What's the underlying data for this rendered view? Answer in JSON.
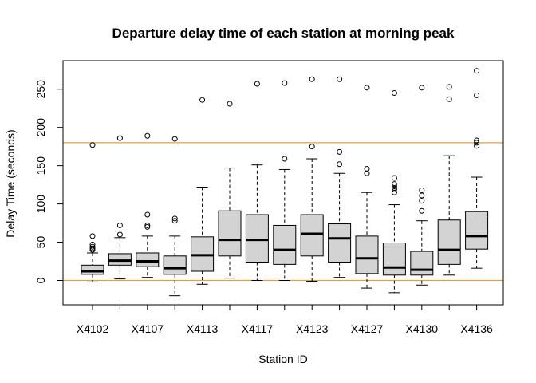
{
  "chart_data": {
    "type": "box",
    "title": "Departure delay time of each station at morning peak",
    "xlabel": "Station ID",
    "ylabel": "Delay Time (seconds)",
    "ylim": [
      -32,
      285
    ],
    "yticks": [
      0,
      50,
      100,
      150,
      200,
      250
    ],
    "x_tick_labels_shown": [
      "X4102",
      "X4107",
      "X4113",
      "X4117",
      "X4123",
      "X4127",
      "X4130",
      "X4136"
    ],
    "x_tick_label_every": 2,
    "reference_lines": [
      {
        "y": 180,
        "color": "#d8a44a"
      },
      {
        "y": 0,
        "color": "#d8a44a"
      }
    ],
    "box_fill": "#d3d3d3",
    "boxes": [
      {
        "label": "X4102",
        "whisker_low": -2,
        "q1": 8,
        "median": 12,
        "q3": 20,
        "whisker_high": 36,
        "outliers": [
          40,
          42,
          44,
          47,
          58,
          177
        ]
      },
      {
        "label": "",
        "whisker_low": 2,
        "q1": 20,
        "median": 26,
        "q3": 35,
        "whisker_high": 56,
        "outliers": [
          60,
          72,
          186
        ]
      },
      {
        "label": "X4107",
        "whisker_low": 4,
        "q1": 18,
        "median": 25,
        "q3": 36,
        "whisker_high": 58,
        "outliers": [
          70,
          72,
          86,
          189
        ]
      },
      {
        "label": "",
        "whisker_low": -20,
        "q1": 8,
        "median": 16,
        "q3": 32,
        "whisker_high": 58,
        "outliers": [
          78,
          81,
          185
        ]
      },
      {
        "label": "X4113",
        "whisker_low": -5,
        "q1": 12,
        "median": 33,
        "q3": 57,
        "whisker_high": 122,
        "outliers": [
          236
        ]
      },
      {
        "label": "",
        "whisker_low": 3,
        "q1": 32,
        "median": 53,
        "q3": 91,
        "whisker_high": 147,
        "outliers": [
          231
        ]
      },
      {
        "label": "X4117",
        "whisker_low": 0,
        "q1": 24,
        "median": 53,
        "q3": 86,
        "whisker_high": 151,
        "outliers": [
          257
        ]
      },
      {
        "label": "",
        "whisker_low": 0,
        "q1": 21,
        "median": 40,
        "q3": 72,
        "whisker_high": 145,
        "outliers": [
          159,
          258
        ]
      },
      {
        "label": "X4123",
        "whisker_low": -1,
        "q1": 32,
        "median": 61,
        "q3": 86,
        "whisker_high": 159,
        "outliers": [
          175,
          263
        ]
      },
      {
        "label": "",
        "whisker_low": 4,
        "q1": 24,
        "median": 55,
        "q3": 74,
        "whisker_high": 140,
        "outliers": [
          152,
          168,
          263
        ]
      },
      {
        "label": "X4127",
        "whisker_low": -10,
        "q1": 9,
        "median": 29,
        "q3": 58,
        "whisker_high": 115,
        "outliers": [
          140,
          146,
          252
        ]
      },
      {
        "label": "",
        "whisker_low": -16,
        "q1": 7,
        "median": 17,
        "q3": 49,
        "whisker_high": 99,
        "outliers": [
          115,
          119,
          121,
          123,
          126,
          134,
          245
        ]
      },
      {
        "label": "X4130",
        "whisker_low": -6,
        "q1": 7,
        "median": 14,
        "q3": 38,
        "whisker_high": 78,
        "outliers": [
          91,
          104,
          111,
          118,
          252
        ]
      },
      {
        "label": "",
        "whisker_low": 7,
        "q1": 21,
        "median": 40,
        "q3": 79,
        "whisker_high": 163,
        "outliers": [
          237,
          253
        ]
      },
      {
        "label": "X4136",
        "whisker_low": 16,
        "q1": 41,
        "median": 58,
        "q3": 90,
        "whisker_high": 135,
        "outliers": [
          176,
          180,
          183,
          242,
          274
        ]
      }
    ]
  }
}
